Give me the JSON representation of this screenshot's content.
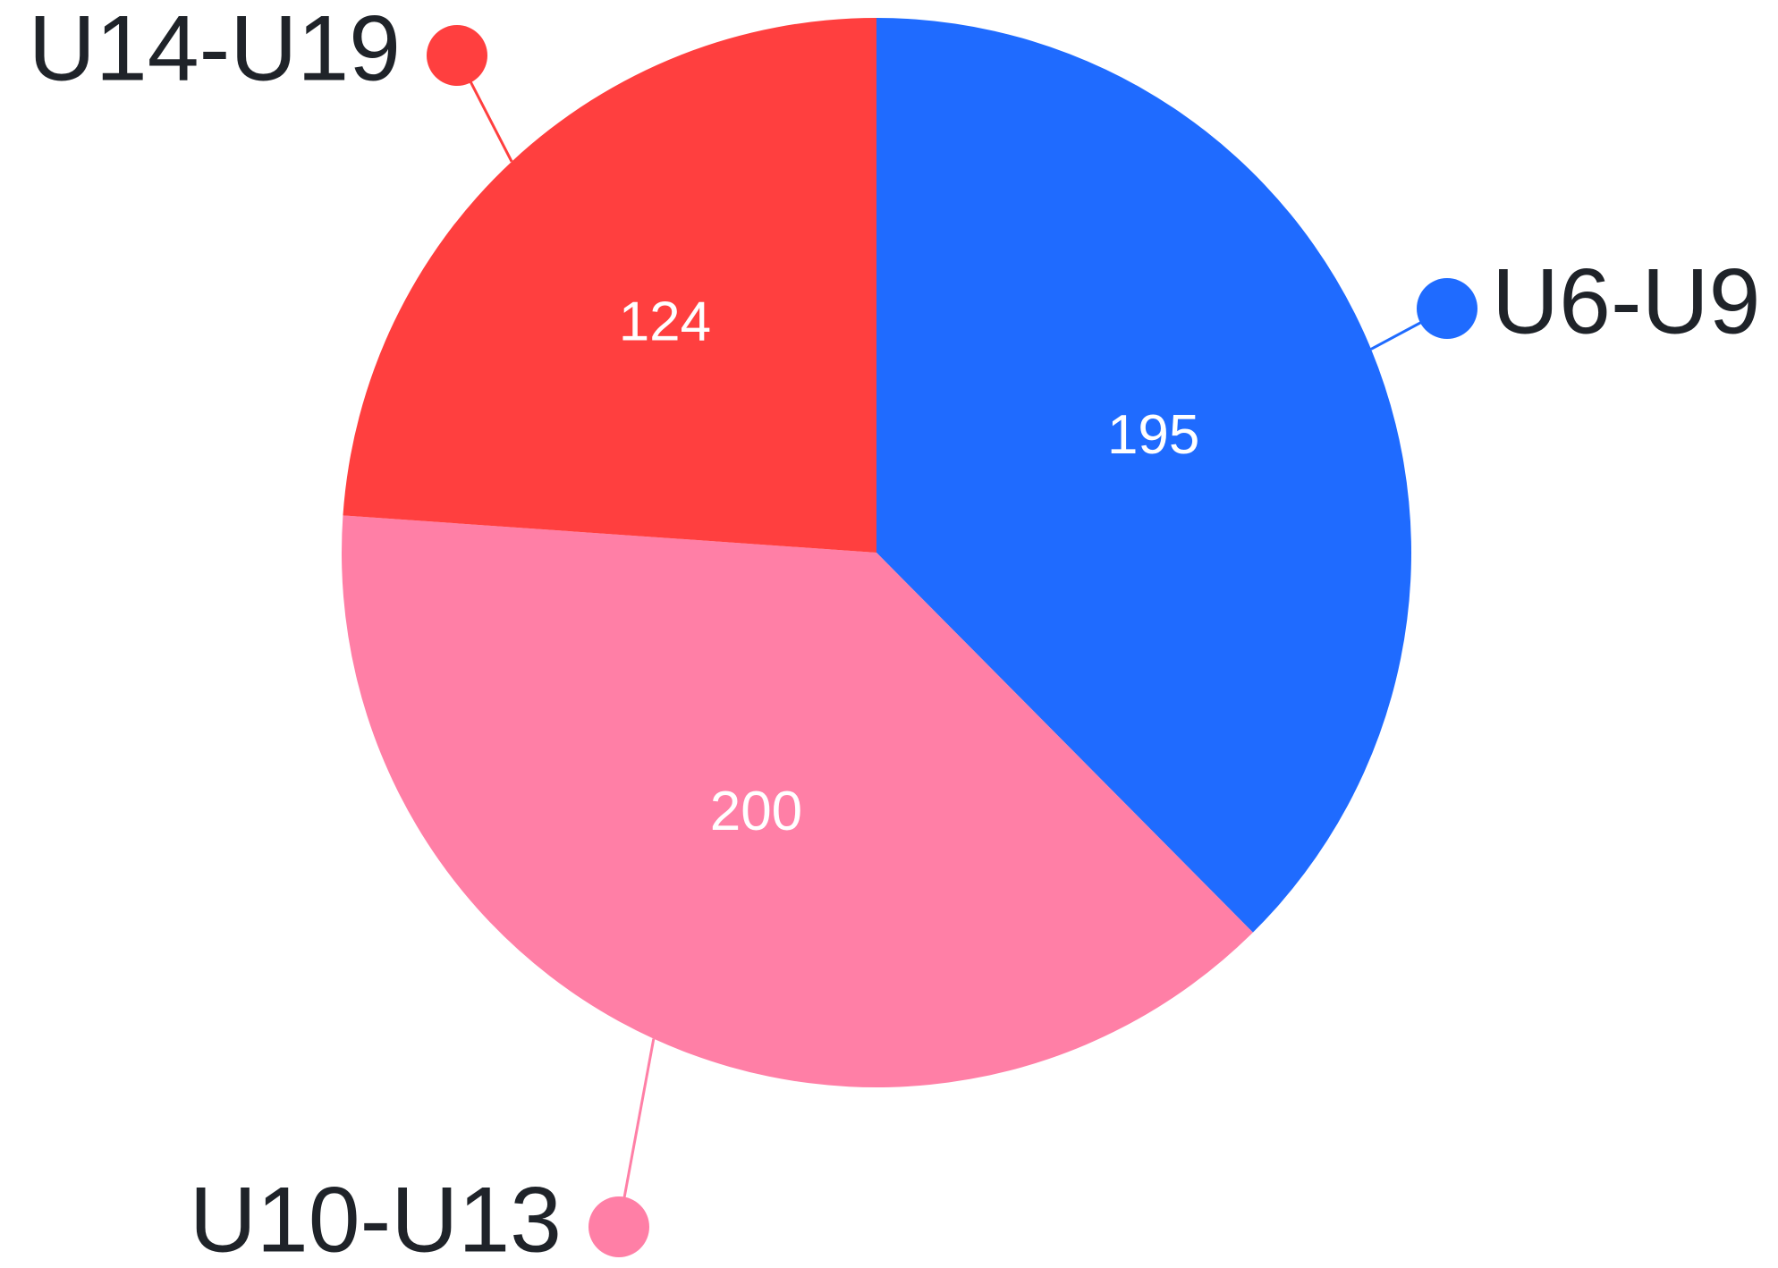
{
  "chart_data": {
    "type": "pie",
    "categories": [
      "U6-U9",
      "U10-U13",
      "U14-U19"
    ],
    "values": [
      195,
      200,
      124
    ],
    "colors": [
      "#1f6bff",
      "#ff7fa6",
      "#ff3f3f"
    ],
    "data_labels": [
      "195",
      "200",
      "124"
    ],
    "start_angle": "12 o'clock",
    "direction": "clockwise",
    "legend": "none",
    "labels": "outside with leader lines"
  }
}
